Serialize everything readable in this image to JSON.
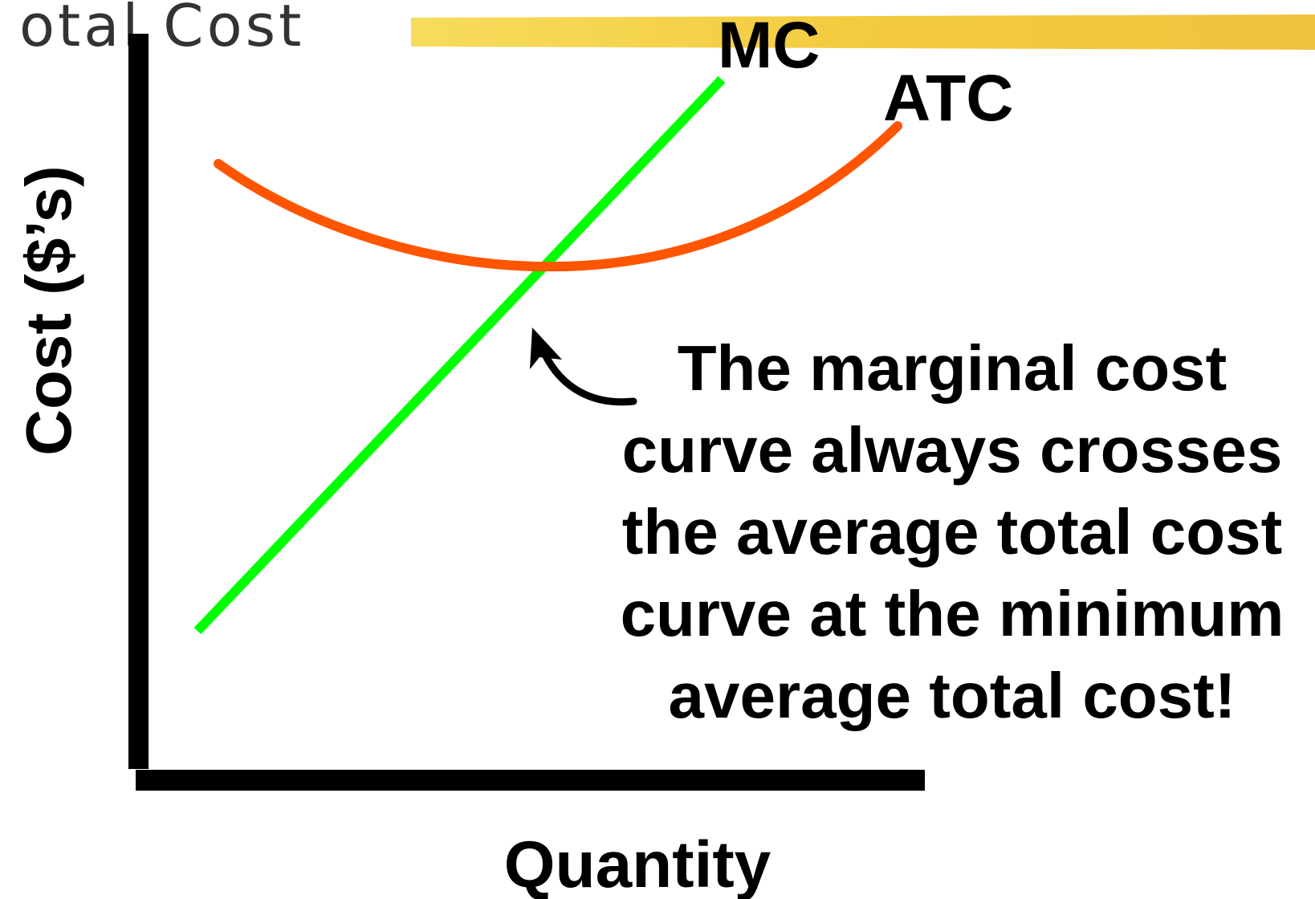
{
  "header": {
    "title": "otal Cost"
  },
  "axes": {
    "y_label": "Cost ($’s)",
    "x_label": "Quantity"
  },
  "curves": {
    "mc": {
      "label": "MC"
    },
    "atc": {
      "label": "ATC"
    }
  },
  "annotation": {
    "lines": [
      "The marginal cost",
      "curve always crosses",
      "the average total cost",
      "curve at the minimum",
      "average total cost!"
    ]
  }
}
